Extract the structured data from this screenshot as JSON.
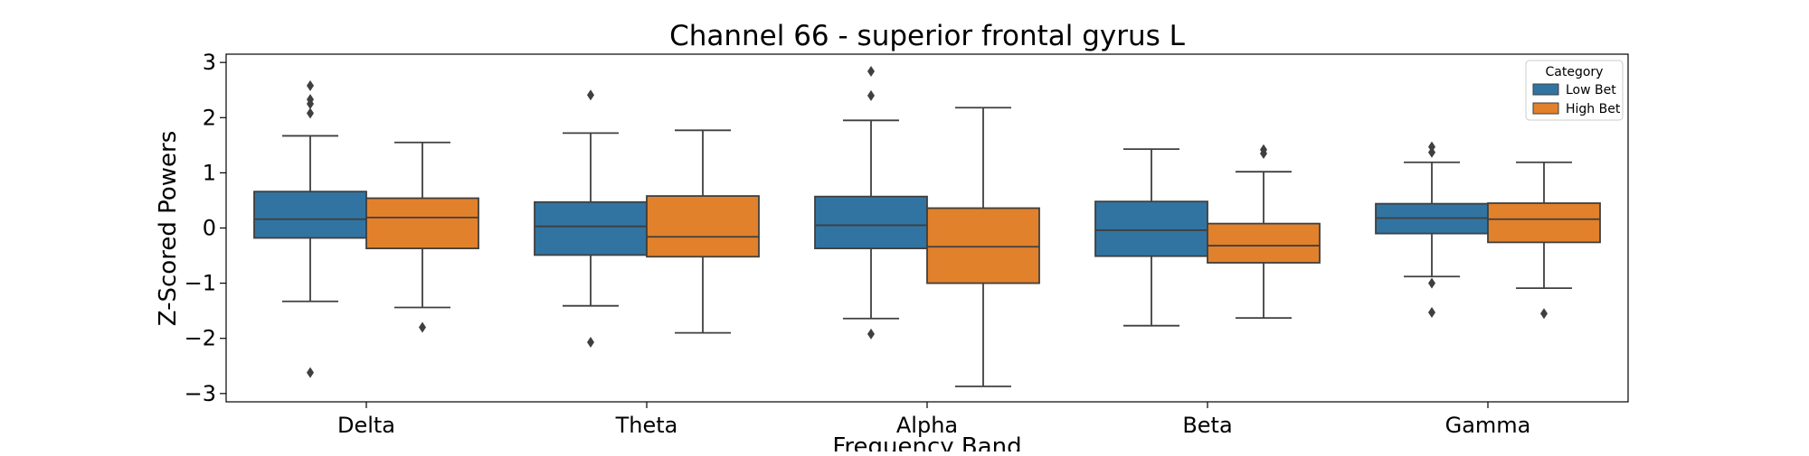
{
  "chart_data": {
    "type": "box",
    "title": "Channel 66 - superior frontal gyrus L",
    "xlabel": "Frequency Band",
    "ylabel": "Z-Scored Powers",
    "ylim": [
      -3.15,
      3.15
    ],
    "yticks": [
      -3,
      -2,
      -1,
      0,
      1,
      2,
      3
    ],
    "ytick_labels": [
      "−3",
      "−2",
      "−1",
      "0",
      "1",
      "2",
      "3"
    ],
    "grid": false,
    "legend_position": "top-right",
    "legend_title": "Category",
    "categories": [
      "Delta",
      "Theta",
      "Alpha",
      "Beta",
      "Gamma"
    ],
    "series": [
      {
        "name": "Low Bet",
        "color": "#3274a1",
        "boxes": [
          {
            "whisker_low": -1.33,
            "q1": -0.18,
            "median": 0.16,
            "q3": 0.66,
            "whisker_high": 1.67,
            "outliers": [
              2.08,
              2.25,
              2.33,
              2.58,
              -2.62
            ]
          },
          {
            "whisker_low": -1.41,
            "q1": -0.49,
            "median": 0.03,
            "q3": 0.47,
            "whisker_high": 1.72,
            "outliers": [
              2.41,
              -2.07
            ]
          },
          {
            "whisker_low": -1.64,
            "q1": -0.37,
            "median": 0.05,
            "q3": 0.57,
            "whisker_high": 1.95,
            "outliers": [
              2.84,
              2.4,
              -1.92
            ]
          },
          {
            "whisker_low": -1.77,
            "q1": -0.51,
            "median": -0.04,
            "q3": 0.48,
            "whisker_high": 1.43,
            "outliers": []
          },
          {
            "whisker_low": -0.88,
            "q1": -0.1,
            "median": 0.18,
            "q3": 0.44,
            "whisker_high": 1.19,
            "outliers": [
              1.47,
              1.37,
              -1.0,
              -1.53
            ]
          }
        ]
      },
      {
        "name": "High Bet",
        "color": "#e1812c",
        "boxes": [
          {
            "whisker_low": -1.44,
            "q1": -0.37,
            "median": 0.19,
            "q3": 0.54,
            "whisker_high": 1.55,
            "outliers": [
              -1.8
            ]
          },
          {
            "whisker_low": -1.9,
            "q1": -0.52,
            "median": -0.16,
            "q3": 0.58,
            "whisker_high": 1.77,
            "outliers": []
          },
          {
            "whisker_low": -2.87,
            "q1": -1.0,
            "median": -0.34,
            "q3": 0.36,
            "whisker_high": 2.18,
            "outliers": []
          },
          {
            "whisker_low": -1.63,
            "q1": -0.63,
            "median": -0.32,
            "q3": 0.08,
            "whisker_high": 1.02,
            "outliers": [
              1.42,
              1.35
            ]
          },
          {
            "whisker_low": -1.09,
            "q1": -0.26,
            "median": 0.16,
            "q3": 0.45,
            "whisker_high": 1.19,
            "outliers": [
              -1.55
            ]
          }
        ]
      }
    ]
  }
}
